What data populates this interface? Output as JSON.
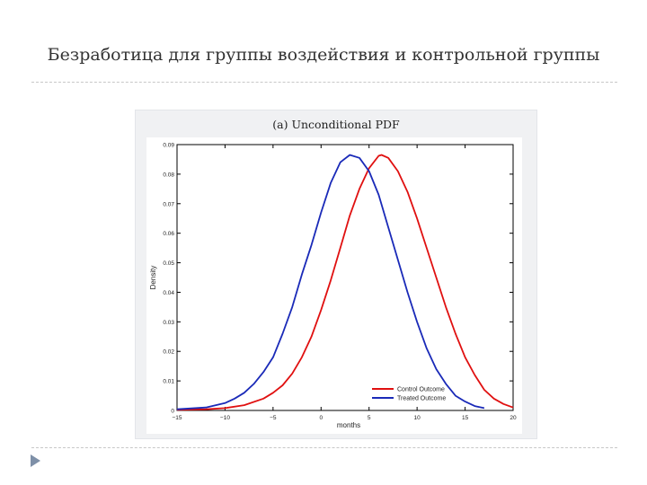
{
  "slide": {
    "title": "Безработица для группы воздействия и контрольной группы"
  },
  "chart_data": {
    "type": "line",
    "title": "(a)  Unconditional PDF",
    "xlabel": "months",
    "ylabel": "Density",
    "xlim": [
      -15,
      20
    ],
    "ylim": [
      0,
      0.09
    ],
    "xticks": [
      "−15",
      "−10",
      "−5",
      "0",
      "5",
      "10",
      "15",
      "20"
    ],
    "yticks": [
      "0",
      "0.01",
      "0.02",
      "0.03",
      "0.04",
      "0.05",
      "0.06",
      "0.07",
      "0.08",
      "0.09"
    ],
    "legend_position": "bottom-right",
    "grid": false,
    "series": [
      {
        "name": "Control Outcome",
        "color": "#e01010",
        "x": [
          -15,
          -12,
          -10,
          -8,
          -6,
          -5,
          -4,
          -3,
          -2,
          -1,
          0,
          1,
          2,
          3,
          4,
          5,
          6,
          6.3,
          7,
          8,
          9,
          10,
          11,
          12,
          13,
          14,
          15,
          16,
          17,
          18,
          19,
          20
        ],
        "y": [
          0.0002,
          0.0004,
          0.0008,
          0.0018,
          0.004,
          0.006,
          0.0085,
          0.0125,
          0.018,
          0.025,
          0.034,
          0.044,
          0.055,
          0.066,
          0.075,
          0.082,
          0.0862,
          0.0865,
          0.0855,
          0.081,
          0.074,
          0.065,
          0.055,
          0.045,
          0.035,
          0.026,
          0.018,
          0.012,
          0.007,
          0.004,
          0.0022,
          0.001
        ]
      },
      {
        "name": "Treated Outcome",
        "color": "#1a2ab8",
        "x": [
          -15,
          -12,
          -10,
          -9,
          -8,
          -7,
          -6,
          -5,
          -4,
          -3,
          -2,
          -1,
          0,
          1,
          2,
          3,
          4,
          5,
          6,
          7,
          8,
          9,
          10,
          11,
          12,
          13,
          14,
          15,
          16,
          17
        ],
        "y": [
          0.0004,
          0.001,
          0.0025,
          0.004,
          0.006,
          0.009,
          0.013,
          0.018,
          0.026,
          0.035,
          0.046,
          0.056,
          0.067,
          0.077,
          0.084,
          0.0865,
          0.0855,
          0.081,
          0.073,
          0.062,
          0.051,
          0.04,
          0.03,
          0.021,
          0.014,
          0.009,
          0.005,
          0.003,
          0.0015,
          0.0008
        ]
      }
    ]
  }
}
